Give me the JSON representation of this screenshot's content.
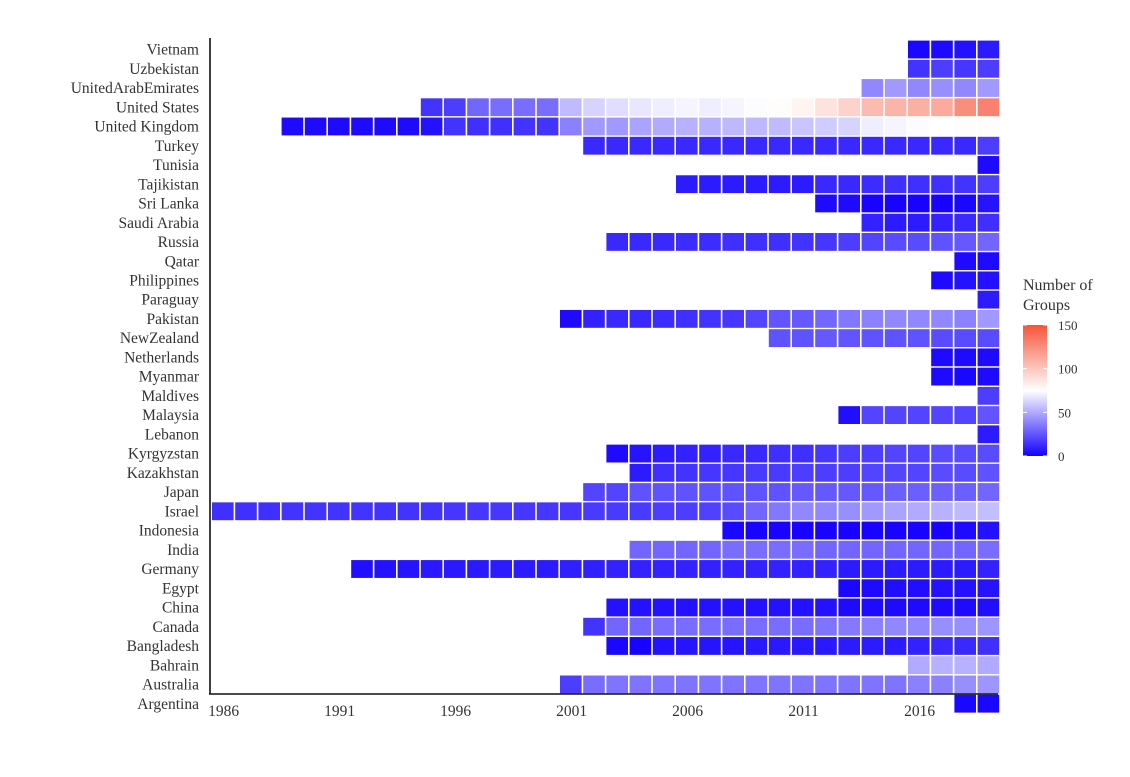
{
  "chart_data": {
    "type": "heatmap",
    "title": "",
    "xlabel": "",
    "ylabel": "",
    "x_range": [
      1986,
      2019
    ],
    "x_ticks": [
      1986,
      1991,
      1996,
      2001,
      2006,
      2011,
      2016
    ],
    "legend": {
      "title_lines": [
        "Number of",
        "Groups"
      ],
      "ticks": [
        0,
        50,
        100,
        150
      ],
      "range": [
        0,
        150
      ],
      "placement": "right",
      "colors": {
        "low": "#1400ff",
        "mid": "#ffffff",
        "high": "#f5553a"
      },
      "mid_value": 75
    },
    "rows": [
      {
        "name": "Vietnam",
        "start": 2016,
        "values": [
          2,
          3,
          5,
          8
        ]
      },
      {
        "name": "Uzbekistan",
        "start": 2016,
        "values": [
          15,
          18,
          16,
          18
        ]
      },
      {
        "name": "UnitedArabEmirates",
        "start": 2014,
        "values": [
          40,
          45,
          40,
          42,
          40,
          45
        ]
      },
      {
        "name": "United States",
        "start": 1995,
        "values": [
          15,
          18,
          30,
          32,
          32,
          32,
          55,
          62,
          65,
          68,
          70,
          72,
          70,
          72,
          74,
          76,
          80,
          88,
          95,
          105,
          108,
          110,
          112,
          125,
          130
        ]
      },
      {
        "name": "United Kingdom",
        "start": 1989,
        "values": [
          3,
          3,
          3,
          3,
          3,
          3,
          5,
          15,
          14,
          14,
          15,
          15,
          38,
          45,
          45,
          48,
          50,
          52,
          52,
          54,
          54,
          55,
          58,
          60,
          62,
          70,
          72,
          74,
          75,
          76,
          76
        ]
      },
      {
        "name": "Turkey",
        "start": 2002,
        "values": [
          12,
          12,
          12,
          12,
          12,
          12,
          12,
          12,
          12,
          12,
          12,
          12,
          12,
          12,
          12,
          12,
          12,
          18
        ]
      },
      {
        "name": "Tunisia",
        "start": 2019,
        "values": [
          3
        ]
      },
      {
        "name": "Tajikistan",
        "start": 2006,
        "values": [
          8,
          8,
          8,
          8,
          8,
          8,
          12,
          12,
          13,
          14,
          14,
          14,
          15,
          18
        ]
      },
      {
        "name": "Sri Lanka",
        "start": 2012,
        "values": [
          3,
          3,
          1,
          1,
          1,
          1,
          2,
          6
        ]
      },
      {
        "name": "Saudi Arabia",
        "start": 2014,
        "values": [
          10,
          8,
          8,
          10,
          12,
          14
        ]
      },
      {
        "name": "Russia",
        "start": 2003,
        "values": [
          12,
          12,
          12,
          13,
          13,
          14,
          14,
          14,
          15,
          16,
          18,
          20,
          22,
          22,
          24,
          26,
          30
        ]
      },
      {
        "name": "Qatar",
        "start": 2018,
        "values": [
          3,
          3
        ]
      },
      {
        "name": "Philippines",
        "start": 2017,
        "values": [
          3,
          5,
          5
        ]
      },
      {
        "name": "Paraguay",
        "start": 2019,
        "values": [
          8
        ]
      },
      {
        "name": "Pakistan",
        "start": 2001,
        "values": [
          3,
          10,
          12,
          12,
          13,
          14,
          15,
          16,
          20,
          25,
          26,
          30,
          35,
          38,
          40,
          40,
          40,
          38,
          45
        ]
      },
      {
        "name": "NewZealand",
        "start": 2010,
        "values": [
          24,
          24,
          26,
          25,
          24,
          24,
          24,
          22,
          22,
          22
        ]
      },
      {
        "name": "Netherlands",
        "start": 2017,
        "values": [
          3,
          3,
          3
        ]
      },
      {
        "name": "Myanmar",
        "start": 2017,
        "values": [
          3,
          2,
          3
        ]
      },
      {
        "name": "Maldives",
        "start": 2019,
        "values": [
          18
        ]
      },
      {
        "name": "Malaysia",
        "start": 2013,
        "values": [
          4,
          20,
          20,
          20,
          20,
          20,
          25
        ]
      },
      {
        "name": "Lebanon",
        "start": 2019,
        "values": [
          8
        ]
      },
      {
        "name": "Kyrgyzstan",
        "start": 2003,
        "values": [
          3,
          6,
          8,
          10,
          10,
          12,
          12,
          14,
          14,
          16,
          18,
          18,
          20,
          20,
          22,
          22,
          22
        ]
      },
      {
        "name": "Kazakhstan",
        "start": 2004,
        "values": [
          8,
          14,
          15,
          16,
          16,
          17,
          17,
          18,
          18,
          18,
          20,
          20,
          20,
          22,
          22,
          24
        ]
      },
      {
        "name": "Japan",
        "start": 2002,
        "values": [
          20,
          20,
          24,
          24,
          24,
          24,
          24,
          24,
          24,
          26,
          26,
          26,
          26,
          28,
          28,
          28,
          28,
          30
        ]
      },
      {
        "name": "Israel",
        "start": 1986,
        "values": [
          14,
          14,
          14,
          15,
          15,
          15,
          15,
          15,
          15,
          15,
          16,
          16,
          16,
          16,
          16,
          16,
          17,
          17,
          17,
          18,
          18,
          19,
          22,
          30,
          35,
          40,
          40,
          42,
          45,
          48,
          50,
          52,
          54,
          56
        ]
      },
      {
        "name": "Indonesia",
        "start": 2008,
        "values": [
          2,
          1,
          1,
          1,
          1,
          1,
          1,
          1,
          1,
          1,
          3,
          5
        ]
      },
      {
        "name": "India",
        "start": 2004,
        "values": [
          30,
          30,
          30,
          30,
          32,
          32,
          32,
          32,
          30,
          30,
          30,
          30,
          30,
          30,
          30,
          32
        ]
      },
      {
        "name": "Germany",
        "start": 1992,
        "values": [
          4,
          5,
          6,
          7,
          7,
          7,
          8,
          8,
          8,
          9,
          9,
          10,
          10,
          10,
          10,
          10,
          10,
          10,
          10,
          10,
          10,
          8,
          8,
          8,
          8,
          8,
          8,
          10
        ]
      },
      {
        "name": "Egypt",
        "start": 2013,
        "values": [
          2,
          3,
          4,
          4,
          5,
          5,
          6
        ]
      },
      {
        "name": "China",
        "start": 2003,
        "values": [
          5,
          5,
          5,
          5,
          5,
          5,
          5,
          5,
          5,
          5,
          3,
          3,
          3,
          3,
          3,
          3,
          4
        ]
      },
      {
        "name": "Canada",
        "start": 2002,
        "values": [
          15,
          30,
          30,
          32,
          32,
          32,
          32,
          32,
          32,
          32,
          34,
          36,
          38,
          40,
          40,
          42,
          42,
          44
        ]
      },
      {
        "name": "Bangladesh",
        "start": 2003,
        "values": [
          2,
          1,
          5,
          6,
          6,
          6,
          7,
          7,
          7,
          7,
          8,
          8,
          8,
          10,
          12,
          12,
          14
        ]
      },
      {
        "name": "Bahrain",
        "start": 2016,
        "values": [
          50,
          52,
          52,
          50
        ]
      },
      {
        "name": "Australia",
        "start": 2001,
        "values": [
          18,
          32,
          34,
          34,
          34,
          34,
          34,
          34,
          34,
          34,
          34,
          34,
          34,
          34,
          34,
          38,
          38,
          42,
          44
        ]
      },
      {
        "name": "Argentina",
        "start": 2018,
        "values": [
          2,
          2
        ]
      }
    ]
  }
}
